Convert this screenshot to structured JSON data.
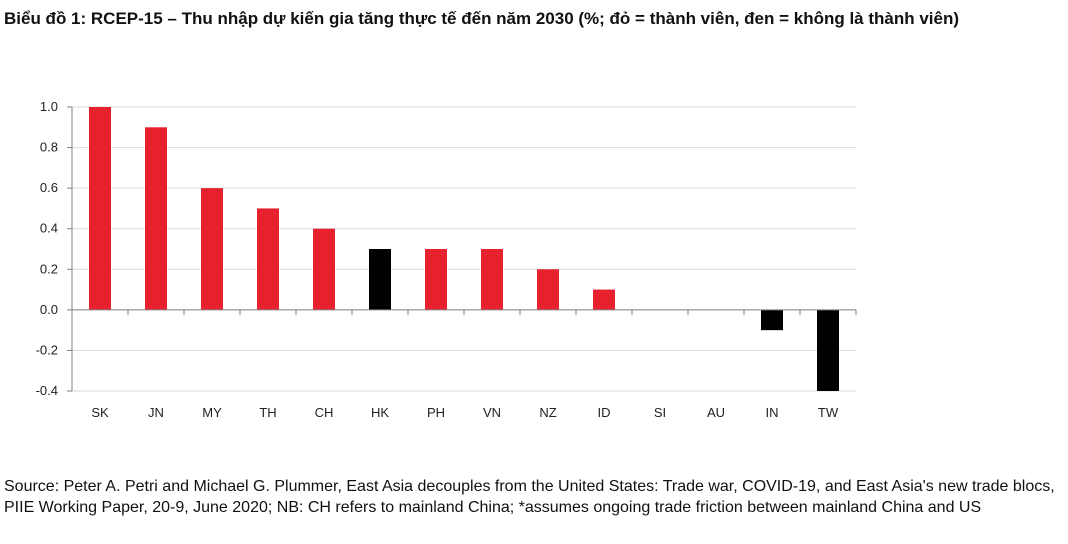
{
  "title": "Biểu đồ 1: RCEP-15 – Thu nhập dự kiến gia tăng thực tế đến năm 2030 (%; đỏ = thành viên, đen = không là thành viên)",
  "source": "Source: Peter A. Petri and Michael G. Plummer, East Asia decouples from the United States: Trade war, COVID-19, and East Asia's new trade blocs, PIIE Working Paper, 20-9, June 2020; NB: CH refers to mainland China; *assumes ongoing trade friction between mainland China and US",
  "colors": {
    "member": "#e8212e",
    "non_member": "#000000",
    "grid": "#d9d9d9",
    "axis": "#7f7f7f"
  },
  "chart_data": {
    "type": "bar",
    "title": "Biểu đồ 1: RCEP-15 – Thu nhập dự kiến gia tăng thực tế đến năm 2030 (%; đỏ = thành viên, đen = không là thành viên)",
    "xlabel": "",
    "ylabel": "",
    "ylim": [
      -0.4,
      1.0
    ],
    "yticks": [
      "1.0",
      "0.8",
      "0.6",
      "0.4",
      "0.2",
      "0.0",
      "-0.2",
      "-0.4"
    ],
    "ytick_values": [
      1.0,
      0.8,
      0.6,
      0.4,
      0.2,
      0.0,
      -0.2,
      -0.4
    ],
    "grid": true,
    "categories": [
      "SK",
      "JN",
      "MY",
      "TH",
      "CH",
      "HK",
      "PH",
      "VN",
      "NZ",
      "ID",
      "SI",
      "AU",
      "IN",
      "TW"
    ],
    "values": [
      1.0,
      0.9,
      0.6,
      0.5,
      0.4,
      0.3,
      0.3,
      0.3,
      0.2,
      0.1,
      0.0,
      0.0,
      -0.1,
      -0.4
    ],
    "member": [
      true,
      true,
      true,
      true,
      true,
      false,
      true,
      true,
      true,
      true,
      true,
      true,
      false,
      false
    ]
  }
}
